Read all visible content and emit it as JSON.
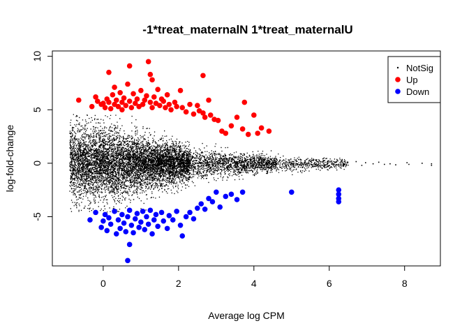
{
  "chart_data": {
    "type": "scatter",
    "title": "-1*treat_maternalN 1*treat_maternalU",
    "xlabel": "Average log CPM",
    "ylabel": "log-fold-change",
    "xlim": [
      -1.35,
      8.95
    ],
    "ylim": [
      -9.6,
      10.5
    ],
    "x_ticks": [
      0,
      2,
      4,
      6,
      8
    ],
    "y_ticks": [
      -5,
      0,
      5,
      10
    ],
    "grid": false,
    "legend_position": "top-right",
    "legend": [
      {
        "label": "NotSig",
        "color": "#000000",
        "marker": "dot"
      },
      {
        "label": "Up",
        "color": "#ff0000",
        "marker": "circle"
      },
      {
        "label": "Down",
        "color": "#0000ff",
        "marker": "circle"
      }
    ],
    "series": [
      {
        "name": "Up",
        "color": "#ff0000",
        "points": [
          [
            -0.65,
            5.9
          ],
          [
            -0.3,
            5.3
          ],
          [
            -0.2,
            6.2
          ],
          [
            -0.15,
            5.8
          ],
          [
            -0.05,
            5.5
          ],
          [
            0.0,
            5.6
          ],
          [
            0.05,
            5.2
          ],
          [
            0.1,
            6.0
          ],
          [
            0.15,
            5.7
          ],
          [
            0.15,
            8.5
          ],
          [
            0.2,
            5.1
          ],
          [
            0.25,
            6.4
          ],
          [
            0.3,
            5.5
          ],
          [
            0.3,
            7.1
          ],
          [
            0.35,
            5.9
          ],
          [
            0.4,
            5.3
          ],
          [
            0.45,
            6.6
          ],
          [
            0.5,
            5.7
          ],
          [
            0.5,
            5.0
          ],
          [
            0.55,
            6.1
          ],
          [
            0.6,
            5.4
          ],
          [
            0.65,
            7.4
          ],
          [
            0.7,
            5.8
          ],
          [
            0.7,
            9.1
          ],
          [
            0.75,
            5.2
          ],
          [
            0.8,
            6.5
          ],
          [
            0.85,
            5.6
          ],
          [
            0.9,
            6.0
          ],
          [
            0.95,
            5.3
          ],
          [
            1.0,
            6.8
          ],
          [
            1.05,
            5.5
          ],
          [
            1.1,
            5.9
          ],
          [
            1.15,
            6.3
          ],
          [
            1.2,
            9.5
          ],
          [
            1.25,
            8.3
          ],
          [
            1.25,
            5.7
          ],
          [
            1.3,
            5.2
          ],
          [
            1.3,
            7.8
          ],
          [
            1.35,
            6.2
          ],
          [
            1.4,
            5.6
          ],
          [
            1.45,
            6.9
          ],
          [
            1.5,
            5.4
          ],
          [
            1.55,
            6.0
          ],
          [
            1.6,
            5.8
          ],
          [
            1.65,
            5.2
          ],
          [
            1.7,
            6.4
          ],
          [
            1.75,
            5.5
          ],
          [
            1.8,
            5.0
          ],
          [
            1.9,
            5.7
          ],
          [
            1.95,
            5.3
          ],
          [
            2.05,
            6.8
          ],
          [
            2.1,
            5.2
          ],
          [
            2.2,
            4.8
          ],
          [
            2.3,
            5.5
          ],
          [
            2.4,
            4.6
          ],
          [
            2.5,
            5.4
          ],
          [
            2.55,
            4.9
          ],
          [
            2.65,
            4.7
          ],
          [
            2.7,
            4.3
          ],
          [
            2.8,
            5.9
          ],
          [
            2.85,
            4.5
          ],
          [
            2.95,
            4.1
          ],
          [
            3.05,
            4.0
          ],
          [
            3.15,
            3.0
          ],
          [
            3.25,
            2.8
          ],
          [
            3.4,
            3.5
          ],
          [
            3.55,
            4.3
          ],
          [
            3.7,
            3.2
          ],
          [
            3.75,
            5.7
          ],
          [
            3.85,
            2.7
          ],
          [
            4.0,
            4.5
          ],
          [
            4.1,
            2.8
          ],
          [
            4.2,
            3.3
          ],
          [
            4.4,
            3.0
          ],
          [
            2.65,
            8.2
          ]
        ]
      },
      {
        "name": "Down",
        "color": "#0000ff",
        "points": [
          [
            -0.35,
            -5.3
          ],
          [
            -0.2,
            -4.6
          ],
          [
            -0.05,
            -6.0
          ],
          [
            0.0,
            -5.4
          ],
          [
            0.05,
            -4.8
          ],
          [
            0.1,
            -6.3
          ],
          [
            0.15,
            -5.1
          ],
          [
            0.2,
            -5.7
          ],
          [
            0.3,
            -4.5
          ],
          [
            0.35,
            -6.6
          ],
          [
            0.4,
            -5.3
          ],
          [
            0.45,
            -6.1
          ],
          [
            0.5,
            -4.8
          ],
          [
            0.55,
            -5.6
          ],
          [
            0.6,
            -6.4
          ],
          [
            0.65,
            -5.0
          ],
          [
            0.7,
            -4.4
          ],
          [
            0.7,
            -7.6
          ],
          [
            0.75,
            -5.8
          ],
          [
            0.8,
            -6.5
          ],
          [
            0.85,
            -5.2
          ],
          [
            0.9,
            -4.7
          ],
          [
            0.95,
            -6.0
          ],
          [
            1.0,
            -5.5
          ],
          [
            1.05,
            -4.5
          ],
          [
            1.1,
            -6.2
          ],
          [
            1.15,
            -5.0
          ],
          [
            1.2,
            -5.7
          ],
          [
            1.25,
            -4.4
          ],
          [
            1.3,
            -6.6
          ],
          [
            1.35,
            -5.3
          ],
          [
            1.4,
            -4.8
          ],
          [
            1.45,
            -5.9
          ],
          [
            1.55,
            -4.6
          ],
          [
            1.6,
            -5.4
          ],
          [
            1.7,
            -6.1
          ],
          [
            1.75,
            -4.9
          ],
          [
            1.85,
            -5.3
          ],
          [
            1.95,
            -4.5
          ],
          [
            2.05,
            -5.8
          ],
          [
            2.1,
            -6.8
          ],
          [
            2.2,
            -5.0
          ],
          [
            2.3,
            -4.6
          ],
          [
            2.4,
            -5.2
          ],
          [
            2.5,
            -4.2
          ],
          [
            2.6,
            -3.8
          ],
          [
            2.7,
            -4.3
          ],
          [
            2.8,
            -3.3
          ],
          [
            2.9,
            -3.6
          ],
          [
            3.0,
            -2.7
          ],
          [
            3.1,
            -4.1
          ],
          [
            3.25,
            -3.1
          ],
          [
            3.4,
            -2.9
          ],
          [
            3.55,
            -3.4
          ],
          [
            3.7,
            -2.7
          ],
          [
            5.0,
            -2.7
          ],
          [
            6.25,
            -2.5
          ],
          [
            6.25,
            -2.9
          ],
          [
            6.25,
            -3.3
          ],
          [
            6.25,
            -3.6
          ],
          [
            0.65,
            -9.1
          ]
        ]
      }
    ],
    "notsig_cloud": {
      "color": "#000000",
      "marker": "dot",
      "sample_count": 9000,
      "x_range": [
        -0.9,
        8.75
      ],
      "description_points": [
        [
          7.6,
          0.0
        ],
        [
          7.75,
          -0.1
        ],
        [
          8.05,
          0.1
        ],
        [
          8.1,
          -0.05
        ],
        [
          8.45,
          0.05
        ],
        [
          8.7,
          0.0
        ],
        [
          8.7,
          -0.15
        ],
        [
          6.7,
          0.2
        ],
        [
          6.85,
          -0.15
        ],
        [
          6.95,
          0.1
        ],
        [
          7.15,
          0.0
        ],
        [
          7.3,
          0.15
        ],
        [
          7.45,
          -0.05
        ]
      ]
    }
  }
}
